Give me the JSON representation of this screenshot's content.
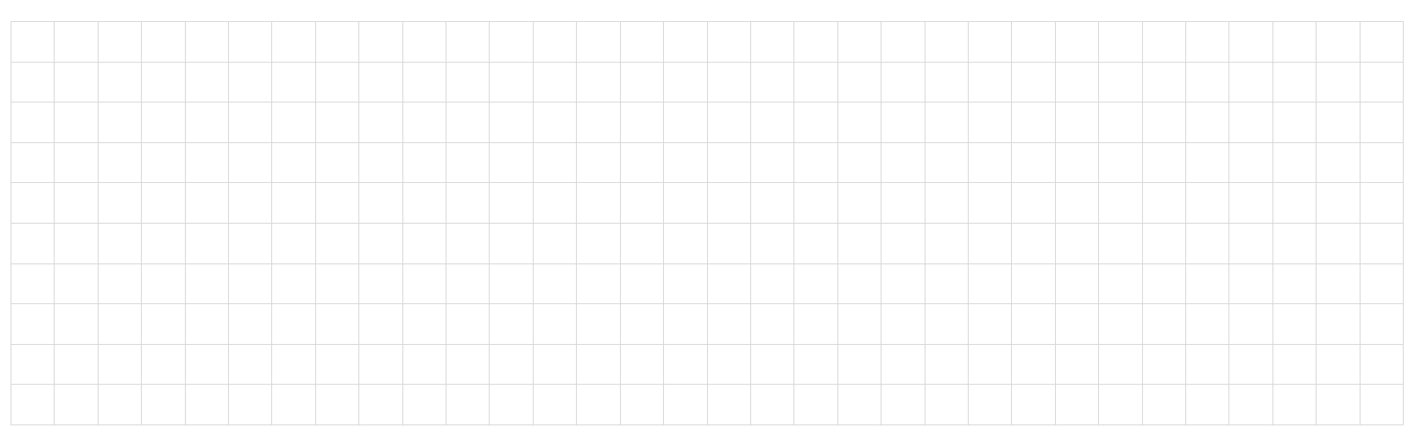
{
  "grid": {
    "rows": 10,
    "columns": 32,
    "line_color": "#d6d6d6",
    "background": "#ffffff"
  }
}
